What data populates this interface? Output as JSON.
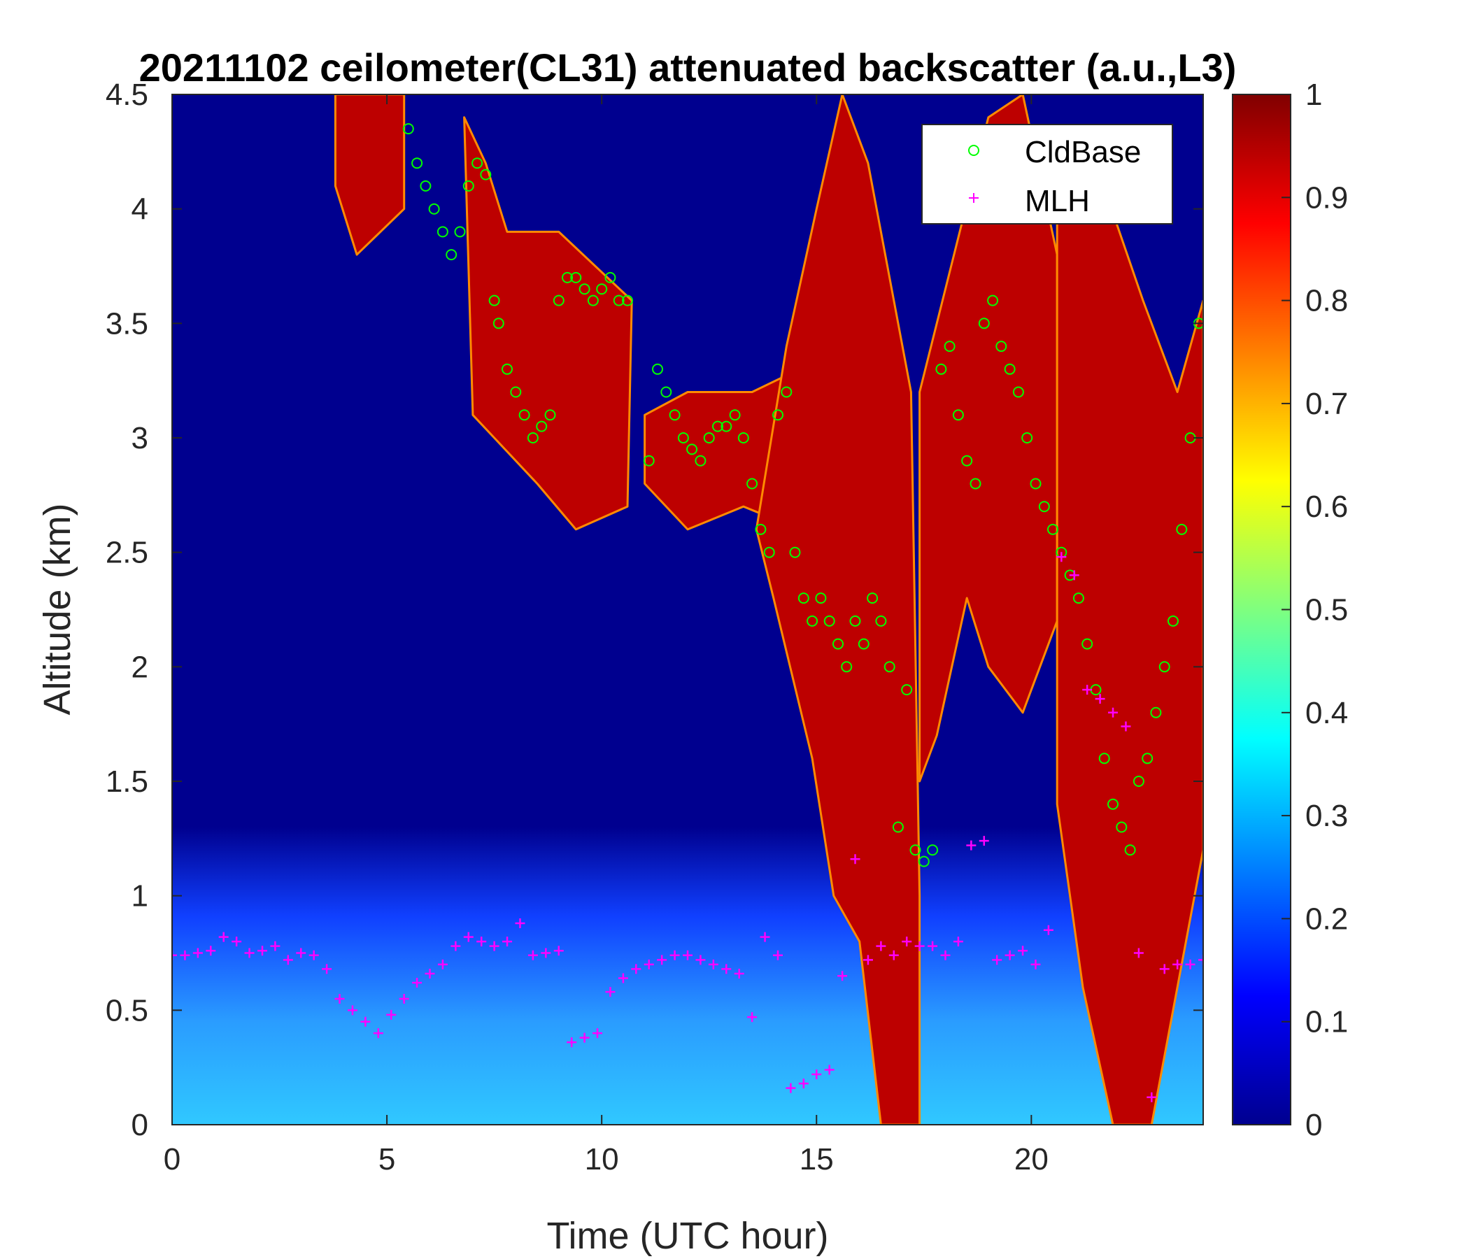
{
  "chart_data": {
    "type": "heatmap",
    "title": "20211102 ceilometer(CL31) attenuated backscatter (a.u.,L3)",
    "xlabel": "Time (UTC hour)",
    "ylabel": "Altitude (km)",
    "xlim": [
      0,
      24
    ],
    "ylim": [
      0,
      4.5
    ],
    "x_ticks": [
      0,
      5,
      10,
      15,
      20
    ],
    "x_tick_labels": [
      "0",
      "5",
      "10",
      "15",
      "20"
    ],
    "y_ticks": [
      0,
      0.5,
      1,
      1.5,
      2,
      2.5,
      3,
      3.5,
      4,
      4.5
    ],
    "y_tick_labels": [
      "0",
      "0.5",
      "1",
      "1.5",
      "2",
      "2.5",
      "3",
      "3.5",
      "4",
      "4.5"
    ],
    "colorbar": {
      "colormap": "jet",
      "range": [
        0,
        1
      ],
      "ticks": [
        0,
        0.1,
        0.2,
        0.3,
        0.4,
        0.5,
        0.6,
        0.7,
        0.8,
        0.9,
        1
      ],
      "tick_labels": [
        "0",
        "0.1",
        "0.2",
        "0.3",
        "0.4",
        "0.5",
        "0.6",
        "0.7",
        "0.8",
        "0.9",
        "1"
      ]
    },
    "legend": {
      "position": "top-right",
      "entries": [
        {
          "label": "CldBase",
          "marker": "circle",
          "color": "#00ff00"
        },
        {
          "label": "MLH",
          "marker": "plus",
          "color": "#ff00ff"
        }
      ]
    },
    "backscatter_regions": [
      {
        "level": 1.0,
        "description": "high-altitude cloud 3.8-7.1h",
        "polygon": [
          [
            3.8,
            4.5
          ],
          [
            5.4,
            4.5
          ],
          [
            5.4,
            4.0
          ],
          [
            4.3,
            3.8
          ],
          [
            3.8,
            4.1
          ]
        ]
      },
      {
        "level": 1.0,
        "description": "descending cloud 6.8-10.7h",
        "polygon": [
          [
            6.8,
            4.4
          ],
          [
            7.3,
            4.2
          ],
          [
            7.8,
            3.9
          ],
          [
            9.0,
            3.9
          ],
          [
            10.7,
            3.6
          ],
          [
            10.6,
            2.7
          ],
          [
            9.4,
            2.6
          ],
          [
            8.5,
            2.8
          ],
          [
            7.5,
            3.0
          ],
          [
            7.0,
            3.1
          ]
        ]
      },
      {
        "level": 1.0,
        "description": "mid-level cloud band 11-14.6h",
        "polygon": [
          [
            11.0,
            3.1
          ],
          [
            12.0,
            3.2
          ],
          [
            13.5,
            3.2
          ],
          [
            14.6,
            3.3
          ],
          [
            14.6,
            2.6
          ],
          [
            13.3,
            2.7
          ],
          [
            12.0,
            2.6
          ],
          [
            11.0,
            2.8
          ]
        ]
      },
      {
        "level": 1.0,
        "description": "deep cloud column 13.5-17.4h",
        "polygon": [
          [
            14.3,
            3.4
          ],
          [
            15.0,
            4.0
          ],
          [
            15.6,
            4.5
          ],
          [
            16.2,
            4.2
          ],
          [
            16.8,
            3.6
          ],
          [
            17.2,
            3.2
          ],
          [
            17.4,
            1.0
          ],
          [
            17.4,
            0.0
          ],
          [
            16.5,
            0.0
          ],
          [
            16.0,
            0.8
          ],
          [
            15.4,
            1.0
          ],
          [
            14.9,
            1.6
          ],
          [
            14.0,
            2.3
          ],
          [
            13.6,
            2.6
          ]
        ]
      },
      {
        "level": 1.0,
        "description": "cloud 17.4-20.6h",
        "polygon": [
          [
            17.4,
            3.2
          ],
          [
            18.2,
            3.8
          ],
          [
            19.0,
            4.4
          ],
          [
            19.8,
            4.5
          ],
          [
            20.6,
            3.8
          ],
          [
            20.6,
            2.2
          ],
          [
            19.8,
            1.8
          ],
          [
            19.0,
            2.0
          ],
          [
            18.5,
            2.3
          ],
          [
            17.8,
            1.7
          ],
          [
            17.4,
            1.5
          ]
        ]
      },
      {
        "level": 1.0,
        "description": "cloud 20.6-24h",
        "polygon": [
          [
            20.6,
            4.0
          ],
          [
            21.5,
            4.2
          ],
          [
            22.6,
            3.6
          ],
          [
            23.4,
            3.2
          ],
          [
            24.0,
            3.6
          ],
          [
            24.0,
            1.2
          ],
          [
            23.4,
            0.6
          ],
          [
            22.8,
            0.0
          ],
          [
            21.9,
            0.0
          ],
          [
            21.2,
            0.6
          ],
          [
            20.6,
            1.4
          ]
        ]
      }
    ],
    "series": [
      {
        "name": "CldBase",
        "marker": "circle",
        "x": [
          5.5,
          5.7,
          5.9,
          6.1,
          6.3,
          6.5,
          6.7,
          6.9,
          7.1,
          7.3,
          7.5,
          7.6,
          7.8,
          8.0,
          8.2,
          8.4,
          8.6,
          8.8,
          9.0,
          9.2,
          9.4,
          9.6,
          9.8,
          10.0,
          10.2,
          10.4,
          10.6,
          11.1,
          11.3,
          11.5,
          11.7,
          11.9,
          12.1,
          12.3,
          12.5,
          12.7,
          12.9,
          13.1,
          13.3,
          13.5,
          13.7,
          13.9,
          14.1,
          14.3,
          14.5,
          14.7,
          14.9,
          15.1,
          15.3,
          15.5,
          15.7,
          15.9,
          16.1,
          16.3,
          16.5,
          16.7,
          16.9,
          17.1,
          17.3,
          17.5,
          17.7,
          17.9,
          18.1,
          18.3,
          18.5,
          18.7,
          18.9,
          19.1,
          19.3,
          19.5,
          19.7,
          19.9,
          20.1,
          20.3,
          20.5,
          20.7,
          20.9,
          21.1,
          21.3,
          21.5,
          21.7,
          21.9,
          22.1,
          22.3,
          22.5,
          22.7,
          22.9,
          23.1,
          23.3,
          23.5,
          23.7,
          23.9
        ],
        "y": [
          4.35,
          4.2,
          4.1,
          4.0,
          3.9,
          3.8,
          3.9,
          4.1,
          4.2,
          4.15,
          3.6,
          3.5,
          3.3,
          3.2,
          3.1,
          3.0,
          3.05,
          3.1,
          3.6,
          3.7,
          3.7,
          3.65,
          3.6,
          3.65,
          3.7,
          3.6,
          3.6,
          2.9,
          3.3,
          3.2,
          3.1,
          3.0,
          2.95,
          2.9,
          3.0,
          3.05,
          3.05,
          3.1,
          3.0,
          2.8,
          2.6,
          2.5,
          3.1,
          3.2,
          2.5,
          2.3,
          2.2,
          2.3,
          2.2,
          2.1,
          2.0,
          2.2,
          2.1,
          2.3,
          2.2,
          2.0,
          1.3,
          1.9,
          1.2,
          1.15,
          1.2,
          3.3,
          3.4,
          3.1,
          2.9,
          2.8,
          3.5,
          3.6,
          3.4,
          3.3,
          3.2,
          3.0,
          2.8,
          2.7,
          2.6,
          2.5,
          2.4,
          2.3,
          2.1,
          1.9,
          1.6,
          1.4,
          1.3,
          1.2,
          1.5,
          1.6,
          1.8,
          2.0,
          2.2,
          2.6,
          3.0,
          3.5
        ]
      },
      {
        "name": "MLH",
        "marker": "plus",
        "x": [
          0.0,
          0.3,
          0.6,
          0.9,
          1.2,
          1.5,
          1.8,
          2.1,
          2.4,
          2.7,
          3.0,
          3.3,
          3.6,
          3.9,
          4.2,
          4.5,
          4.8,
          5.1,
          5.4,
          5.7,
          6.0,
          6.3,
          6.6,
          6.9,
          7.2,
          7.5,
          7.8,
          8.1,
          8.4,
          8.7,
          9.0,
          9.3,
          9.6,
          9.9,
          10.2,
          10.5,
          10.8,
          11.1,
          11.4,
          11.7,
          12.0,
          12.3,
          12.6,
          12.9,
          13.2,
          13.5,
          13.8,
          14.1,
          14.4,
          14.7,
          15.0,
          15.3,
          15.6,
          15.9,
          16.2,
          16.5,
          16.8,
          17.1,
          17.4,
          17.7,
          18.0,
          18.3,
          18.6,
          18.9,
          19.2,
          19.5,
          19.8,
          20.1,
          20.4,
          20.7,
          21.0,
          21.3,
          21.6,
          21.9,
          22.2,
          22.5,
          22.8,
          23.1,
          23.4,
          23.7,
          24.0
        ],
        "y": [
          0.74,
          0.74,
          0.75,
          0.76,
          0.82,
          0.8,
          0.75,
          0.76,
          0.78,
          0.72,
          0.75,
          0.74,
          0.68,
          0.55,
          0.5,
          0.45,
          0.4,
          0.48,
          0.55,
          0.62,
          0.66,
          0.7,
          0.78,
          0.82,
          0.8,
          0.78,
          0.8,
          0.88,
          0.74,
          0.75,
          0.76,
          0.36,
          0.38,
          0.4,
          0.58,
          0.64,
          0.68,
          0.7,
          0.72,
          0.74,
          0.74,
          0.72,
          0.7,
          0.68,
          0.66,
          0.47,
          0.82,
          0.74,
          0.16,
          0.18,
          0.22,
          0.24,
          0.65,
          1.16,
          0.72,
          0.78,
          0.74,
          0.8,
          0.78,
          0.78,
          0.74,
          0.8,
          1.22,
          1.24,
          0.72,
          0.74,
          0.76,
          0.7,
          0.85,
          2.48,
          2.4,
          1.9,
          1.86,
          1.8,
          1.74,
          0.75,
          0.12,
          0.68,
          0.7,
          0.7,
          0.72
        ]
      }
    ]
  }
}
